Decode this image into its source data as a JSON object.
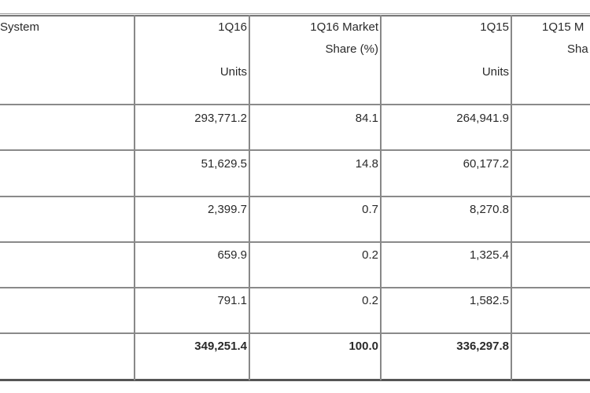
{
  "table": {
    "headers": {
      "os": "System",
      "q16_units_top": "1Q16",
      "q16_units_bottom": "Units",
      "q16_share_top": "1Q16 Market",
      "q16_share_bottom": "Share (%)",
      "q15_units_top": "1Q15",
      "q15_units_bottom": "Units",
      "q15_share_top": "1Q15 M",
      "q15_share_bottom": "Sha"
    },
    "rows": [
      {
        "q16_units": "293,771.2",
        "q16_share": "84.1",
        "q15_units": "264,941.9"
      },
      {
        "q16_units": "51,629.5",
        "q16_share": "14.8",
        "q15_units": "60,177.2"
      },
      {
        "q16_units": "2,399.7",
        "q16_share": "0.7",
        "q15_units": "8,270.8"
      },
      {
        "q16_units": "659.9",
        "q16_share": "0.2",
        "q15_units": "1,325.4"
      },
      {
        "q16_units": "791.1",
        "q16_share": "0.2",
        "q15_units": "1,582.5"
      },
      {
        "q16_units": "349,251.4",
        "q16_share": "100.0",
        "q15_units": "336,297.8"
      }
    ]
  }
}
